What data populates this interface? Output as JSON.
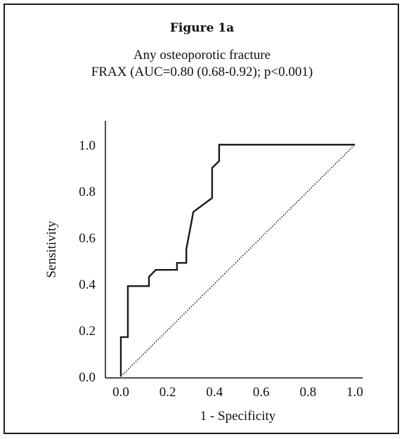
{
  "figure": {
    "label": "Figure 1a",
    "subtitle_line1": "Any osteoporotic fracture",
    "subtitle_line2": "FRAX (AUC=0.80 (0.68-0.92); p<0.001)"
  },
  "chart_data": {
    "type": "line",
    "xlabel": "1 - Specificity",
    "ylabel": "Sensitivity",
    "xlim": [
      0,
      1
    ],
    "ylim": [
      0,
      1
    ],
    "x_ticks": [
      "0.0",
      "0.2",
      "0.4",
      "0.6",
      "0.8",
      "1.0"
    ],
    "y_ticks": [
      "0.0",
      "0.2",
      "0.4",
      "0.6",
      "0.8",
      "1.0"
    ],
    "grid": false,
    "series": [
      {
        "style": "solid",
        "color": "#1a1a1a",
        "x": [
          0.0,
          0.0,
          0.03,
          0.03,
          0.12,
          0.12,
          0.15,
          0.24,
          0.24,
          0.28,
          0.28,
          0.31,
          0.39,
          0.39,
          0.42,
          0.42,
          1.0
        ],
        "y": [
          0.0,
          0.17,
          0.17,
          0.39,
          0.39,
          0.43,
          0.46,
          0.46,
          0.49,
          0.49,
          0.55,
          0.71,
          0.77,
          0.9,
          0.93,
          1.0,
          1.0
        ]
      },
      {
        "style": "dotted",
        "color": "#1a1a1a",
        "x": [
          0.0,
          1.0
        ],
        "y": [
          0.0,
          1.0
        ]
      }
    ]
  }
}
